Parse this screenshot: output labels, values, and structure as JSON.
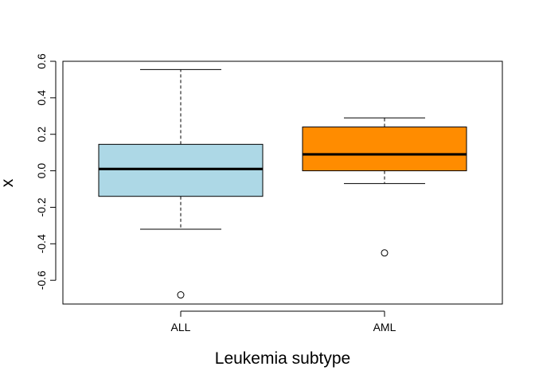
{
  "chart_data": {
    "type": "box",
    "xlabel": "Leukemia subtype",
    "ylabel": "x",
    "categories": [
      "ALL",
      "AML"
    ],
    "ylim": [
      -0.73,
      0.6
    ],
    "yticks": [
      -0.6,
      -0.4,
      -0.2,
      0.0,
      0.2,
      0.4,
      0.6
    ],
    "ytick_labels": [
      "-0.6",
      "-0.4",
      "-0.2",
      "0.0",
      "0.2",
      "0.4",
      "0.6"
    ],
    "boxes": [
      {
        "label": "ALL",
        "color": "#ADD8E6",
        "whisker_low": -0.32,
        "q1": -0.14,
        "median": 0.01,
        "q3": 0.145,
        "whisker_high": 0.555,
        "outliers": [
          -0.68
        ]
      },
      {
        "label": "AML",
        "color": "#FF8C00",
        "whisker_low": -0.07,
        "q1": 0.0,
        "median": 0.09,
        "q3": 0.24,
        "whisker_high": 0.29,
        "outliers": [
          -0.45
        ]
      }
    ],
    "grid": false
  }
}
